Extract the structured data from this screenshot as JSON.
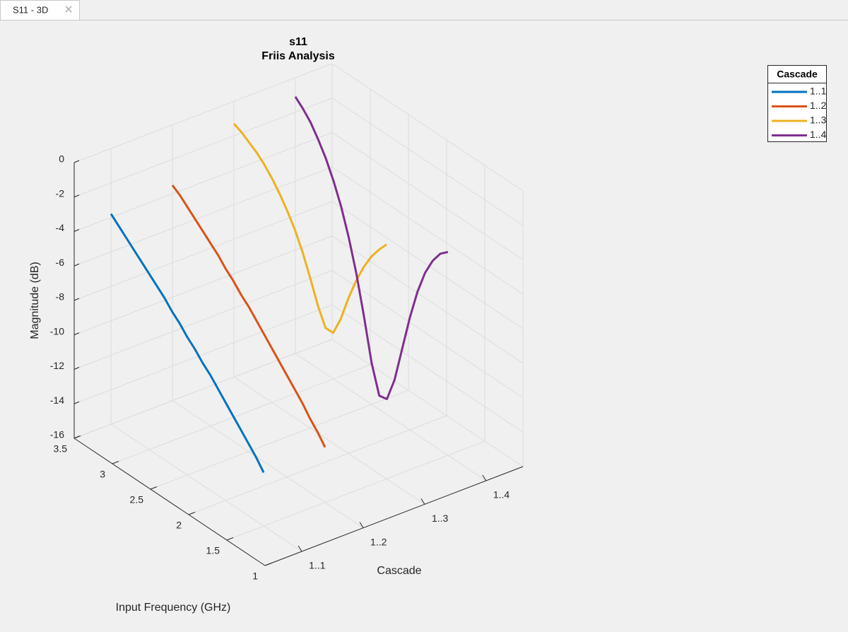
{
  "tab": {
    "label": "S11 - 3D"
  },
  "chart_data": {
    "type": "line3d",
    "title": "s11",
    "subtitle": "Friis Analysis",
    "xlabel": "Input Frequency (GHz)",
    "ylabel": "Cascade",
    "zlabel": "Magnitude (dB)",
    "x": [
      1.5,
      1.6,
      1.7,
      1.8,
      1.9,
      2.0,
      2.1,
      2.2,
      2.3,
      2.4,
      2.5,
      2.6,
      2.7,
      2.8,
      2.9,
      3.0,
      3.1,
      3.2,
      3.3,
      3.4,
      3.5
    ],
    "categories": [
      "1..1",
      "1..2",
      "1..3",
      "1..4"
    ],
    "legend_title": "Cascade",
    "series": [
      {
        "name": "1..1",
        "color": "#0072bd",
        "values": [
          -12.9,
          -12.3,
          -11.8,
          -11.3,
          -10.8,
          -10.3,
          -9.8,
          -9.3,
          -8.9,
          -8.4,
          -8.0,
          -7.5,
          -7.1,
          -6.6,
          -6.2,
          -5.8,
          -5.4,
          -5.0,
          -4.6,
          -4.2,
          -3.8
        ]
      },
      {
        "name": "1..2",
        "color": "#d95319",
        "values": [
          -12.8,
          -12.2,
          -11.7,
          -11.1,
          -10.6,
          -10.1,
          -9.6,
          -9.1,
          -8.6,
          -8.1,
          -7.6,
          -7.2,
          -6.7,
          -6.3,
          -5.8,
          -5.4,
          -5.0,
          -4.6,
          -4.2,
          -3.8,
          -3.5
        ]
      },
      {
        "name": "1..3",
        "color": "#edb120",
        "values": [
          -2.4,
          -3.0,
          -3.7,
          -4.6,
          -5.7,
          -7.0,
          -8.5,
          -9.6,
          -9.6,
          -8.6,
          -7.3,
          -6.1,
          -5.1,
          -4.3,
          -3.6,
          -3.0,
          -2.5,
          -2.1,
          -1.8,
          -1.5,
          -1.3
        ]
      },
      {
        "name": "1..4",
        "color": "#7e2f8e",
        "values": [
          -4.2,
          -4.6,
          -5.3,
          -6.3,
          -7.7,
          -9.5,
          -11.6,
          -13.7,
          -15.1,
          -15.2,
          -13.6,
          -11.2,
          -9.0,
          -7.2,
          -5.7,
          -4.5,
          -3.5,
          -2.7,
          -2.0,
          -1.5,
          -1.1
        ]
      }
    ],
    "xlim": [
      1,
      3.5
    ],
    "xticks": [
      1,
      1.5,
      2,
      2.5,
      3,
      3.5
    ],
    "zlim": [
      -16,
      0
    ],
    "zticks": [
      -16,
      -14,
      -12,
      -10,
      -8,
      -6,
      -4,
      -2,
      0
    ],
    "grid": true
  }
}
